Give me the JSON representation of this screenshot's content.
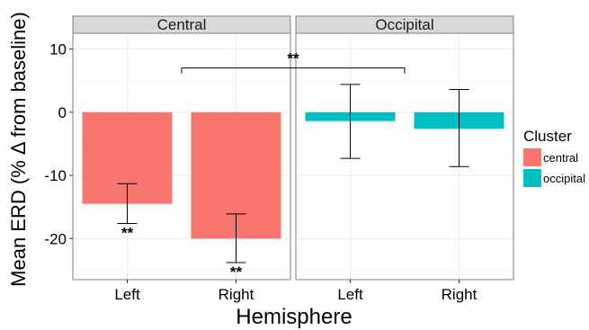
{
  "chart_data": {
    "type": "bar",
    "xlabel": "Hemisphere",
    "ylabel": "Mean ERD (% Δ from baseline)",
    "yticks": [
      10,
      0,
      -10,
      -20
    ],
    "ylim": [
      -26.5,
      12.5
    ],
    "grid": true,
    "categories": [
      "Left",
      "Right"
    ],
    "facets": [
      {
        "label": "Central",
        "series": "central",
        "values": [
          -14.5,
          -20
        ],
        "error_low": [
          -17.6,
          -23.8
        ],
        "error_high": [
          -11.3,
          -16.1
        ],
        "significance": [
          "**",
          "**"
        ]
      },
      {
        "label": "Occipital",
        "series": "occipital",
        "values": [
          -1.4,
          -2.6
        ],
        "error_low": [
          -7.3,
          -8.6
        ],
        "error_high": [
          4.4,
          3.6
        ],
        "significance": [
          "",
          ""
        ]
      }
    ],
    "comparison": {
      "label": "**",
      "from_facet": 0,
      "to_facet": 1,
      "y": 7
    },
    "legend": {
      "title": "Cluster",
      "placement": "right",
      "items": [
        {
          "label": "central",
          "color": "#F8766D"
        },
        {
          "label": "occipital",
          "color": "#00BFC4"
        }
      ]
    }
  }
}
